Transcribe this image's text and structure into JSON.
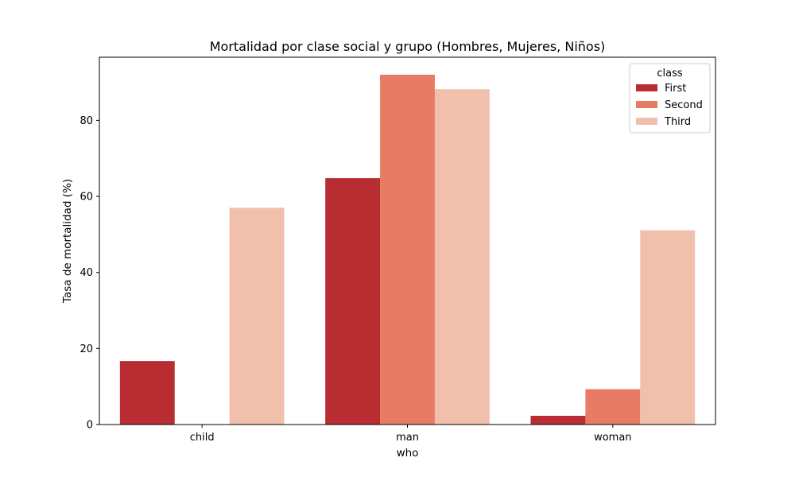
{
  "chart_data": {
    "type": "bar",
    "title": "Mortalidad por clase social y grupo (Hombres, Mujeres, Niños)",
    "xlabel": "who",
    "ylabel": "Tasa de mortalidad (%)",
    "categories": [
      "child",
      "man",
      "woman"
    ],
    "series": [
      {
        "name": "First",
        "color": "#b72d32",
        "values": [
          16.7,
          64.8,
          2.3
        ]
      },
      {
        "name": "Second",
        "color": "#e77b63",
        "values": [
          0,
          92.0,
          9.3
        ]
      },
      {
        "name": "Third",
        "color": "#f1c0ad",
        "values": [
          57.0,
          88.2,
          51.1
        ]
      }
    ],
    "ylim": [
      0,
      96.6
    ],
    "yticks": [
      0,
      20,
      40,
      60,
      80
    ],
    "grid": false,
    "legend": {
      "title": "class",
      "placement": "top-right"
    }
  }
}
